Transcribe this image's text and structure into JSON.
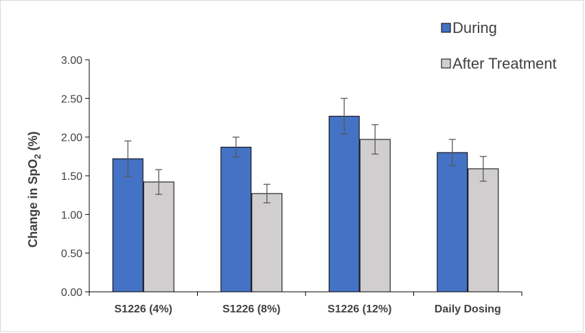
{
  "chart_data": {
    "type": "bar",
    "categories": [
      "S1226 (4%)",
      "S1226 (8%)",
      "S1226 (12%)",
      "Daily Dosing"
    ],
    "series": [
      {
        "name": "During",
        "values": [
          1.72,
          1.87,
          2.27,
          1.8
        ],
        "errors": [
          0.23,
          0.13,
          0.23,
          0.17
        ],
        "color": "#4472C4"
      },
      {
        "name": "After Treatment",
        "values": [
          1.42,
          1.27,
          1.97,
          1.59
        ],
        "errors": [
          0.16,
          0.12,
          0.19,
          0.16
        ],
        "color": "#D0CECE"
      }
    ],
    "ylabel": {
      "prefix": "Change in  SpO",
      "subscript": "2",
      "suffix": " (%)"
    },
    "ylim": [
      0,
      3
    ],
    "yticks": [
      "0.00",
      "0.50",
      "1.00",
      "1.50",
      "2.00",
      "2.50",
      "3.00"
    ],
    "legend_position": "top-right",
    "grid": false
  }
}
